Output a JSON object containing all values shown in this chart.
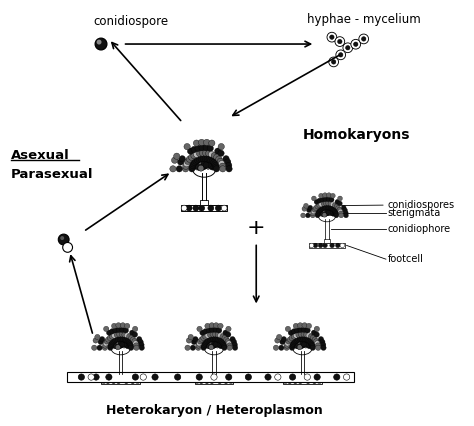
{
  "labels": {
    "conidiospore": "conidiospore",
    "hyphae": "hyphae - mycelium",
    "asexual": "Asexual",
    "parasexual": "Parasexual",
    "homokaryons": "Homokaryons",
    "conidiospores_label": "conidiospores",
    "sterigmata": "sterigmata",
    "conidiophore": "conidiophore",
    "footcell": "footcell",
    "plus": "+",
    "heterokaryon": "Heterokaryon / Heteroplasmon"
  },
  "bg_color": "#ffffff",
  "line_color": "#000000",
  "dark_fill": "#111111",
  "medium_fill": "#666666",
  "light_fill": "#bbbbbb"
}
